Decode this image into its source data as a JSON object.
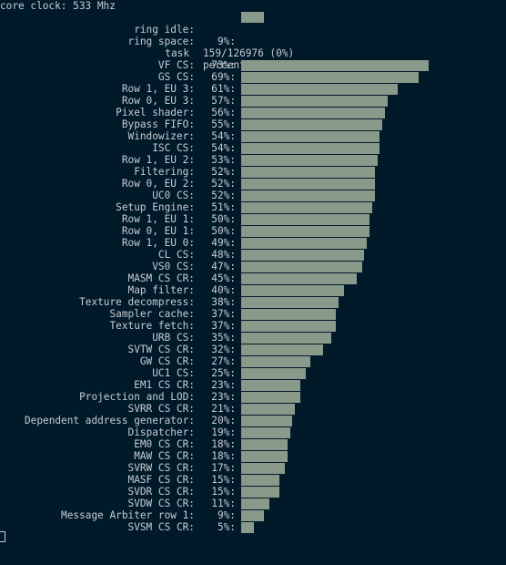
{
  "header": {
    "core_clock": "core clock: 533 Mhz",
    "ring_idle_label": "ring idle:",
    "ring_idle_value": "9%:",
    "ring_idle_percent": 9,
    "ring_space_label": "ring space:",
    "ring_space_value": "159/126976 (0%)",
    "col_task": "task",
    "col_busy": "percent busy"
  },
  "rows": [
    {
      "label": "VF CS:",
      "pct_text": "73%:",
      "pct": 73
    },
    {
      "label": "GS CS:",
      "pct_text": "69%:",
      "pct": 69
    },
    {
      "label": "Row 1, EU 3:",
      "pct_text": "61%:",
      "pct": 61
    },
    {
      "label": "Row 0, EU 3:",
      "pct_text": "57%:",
      "pct": 57
    },
    {
      "label": "Pixel shader:",
      "pct_text": "56%:",
      "pct": 56
    },
    {
      "label": "Bypass FIFO:",
      "pct_text": "55%:",
      "pct": 55
    },
    {
      "label": "Windowizer:",
      "pct_text": "54%:",
      "pct": 54
    },
    {
      "label": "ISC CS:",
      "pct_text": "54%:",
      "pct": 54
    },
    {
      "label": "Row 1, EU 2:",
      "pct_text": "53%:",
      "pct": 53
    },
    {
      "label": "Filtering:",
      "pct_text": "52%:",
      "pct": 52
    },
    {
      "label": "Row 0, EU 2:",
      "pct_text": "52%:",
      "pct": 52
    },
    {
      "label": "UC0 CS:",
      "pct_text": "52%:",
      "pct": 52
    },
    {
      "label": "Setup Engine:",
      "pct_text": "51%:",
      "pct": 51
    },
    {
      "label": "Row 1, EU 1:",
      "pct_text": "50%:",
      "pct": 50
    },
    {
      "label": "Row 0, EU 1:",
      "pct_text": "50%:",
      "pct": 50
    },
    {
      "label": "Row 1, EU 0:",
      "pct_text": "49%:",
      "pct": 49
    },
    {
      "label": "CL CS:",
      "pct_text": "48%:",
      "pct": 48
    },
    {
      "label": "VS0 CS:",
      "pct_text": "47%:",
      "pct": 47
    },
    {
      "label": "MASM CS CR:",
      "pct_text": "45%:",
      "pct": 45
    },
    {
      "label": "Map filter:",
      "pct_text": "40%:",
      "pct": 40
    },
    {
      "label": "Texture decompress:",
      "pct_text": "38%:",
      "pct": 38
    },
    {
      "label": "Sampler cache:",
      "pct_text": "37%:",
      "pct": 37
    },
    {
      "label": "Texture fetch:",
      "pct_text": "37%:",
      "pct": 37
    },
    {
      "label": "URB CS:",
      "pct_text": "35%:",
      "pct": 35
    },
    {
      "label": "SVTW CS CR:",
      "pct_text": "32%:",
      "pct": 32
    },
    {
      "label": "GW CS CR:",
      "pct_text": "27%:",
      "pct": 27
    },
    {
      "label": "UC1 CS:",
      "pct_text": "25%:",
      "pct": 25
    },
    {
      "label": "EM1 CS CR:",
      "pct_text": "23%:",
      "pct": 23
    },
    {
      "label": "Projection and LOD:",
      "pct_text": "23%:",
      "pct": 23
    },
    {
      "label": "SVRR CS CR:",
      "pct_text": "21%:",
      "pct": 21
    },
    {
      "label": "Dependent address generator:",
      "pct_text": "20%:",
      "pct": 20
    },
    {
      "label": "Dispatcher:",
      "pct_text": "19%:",
      "pct": 19
    },
    {
      "label": "EM0 CS CR:",
      "pct_text": "18%:",
      "pct": 18
    },
    {
      "label": "MAW CS CR:",
      "pct_text": "18%:",
      "pct": 18
    },
    {
      "label": "SVRW CS CR:",
      "pct_text": "17%:",
      "pct": 17
    },
    {
      "label": "MASF CS CR:",
      "pct_text": "15%:",
      "pct": 15
    },
    {
      "label": "SVDR CS CR:",
      "pct_text": "15%:",
      "pct": 15
    },
    {
      "label": "SVDW CS CR:",
      "pct_text": "11%:",
      "pct": 11
    },
    {
      "label": "Message Arbiter row 1:",
      "pct_text": "9%:",
      "pct": 9
    },
    {
      "label": "SVSM CS CR:",
      "pct_text": "5%:",
      "pct": 5
    }
  ],
  "colors": {
    "background": "#001a2a",
    "text": "#c8ccd2",
    "bar": "#8a9a8a"
  }
}
